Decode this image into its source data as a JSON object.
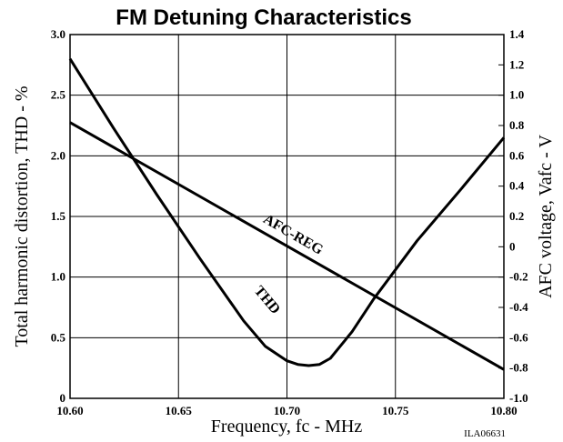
{
  "chart_data": {
    "type": "line",
    "title": "FM Detuning Characteristics",
    "xlabel": "Frequency, fc - MHz",
    "ylabel_left": "Total harmonic distortion, THD - %",
    "ylabel_right": "AFC voltage, Vafc - V",
    "figure_code": "ILA06631",
    "xlim": [
      10.6,
      10.8
    ],
    "ylim_left": [
      0,
      3.0
    ],
    "ylim_right": [
      -1.0,
      1.4
    ],
    "x_ticks": [
      "10.60",
      "10.65",
      "10.70",
      "10.75",
      "10.80"
    ],
    "y_ticks_left": [
      "0",
      "0.5",
      "1.0",
      "1.5",
      "2.0",
      "2.5",
      "3.0"
    ],
    "y_ticks_right": [
      "-1.0",
      "-0.8",
      "-0.6",
      "-0.4",
      "-0.2",
      "0",
      "0.2",
      "0.4",
      "0.6",
      "0.8",
      "1.0",
      "1.2",
      "1.4"
    ],
    "grid": true,
    "series": [
      {
        "name": "THD",
        "axis": "left",
        "x": [
          10.6,
          10.62,
          10.64,
          10.66,
          10.68,
          10.69,
          10.7,
          10.705,
          10.71,
          10.715,
          10.72,
          10.73,
          10.74,
          10.76,
          10.78,
          10.8
        ],
        "y": [
          2.8,
          2.23,
          1.68,
          1.15,
          0.64,
          0.43,
          0.31,
          0.28,
          0.27,
          0.28,
          0.33,
          0.55,
          0.82,
          1.3,
          1.72,
          2.15
        ]
      },
      {
        "name": "AFC-REG",
        "axis": "right",
        "x": [
          10.6,
          10.8
        ],
        "y": [
          0.82,
          -0.81
        ]
      }
    ]
  }
}
